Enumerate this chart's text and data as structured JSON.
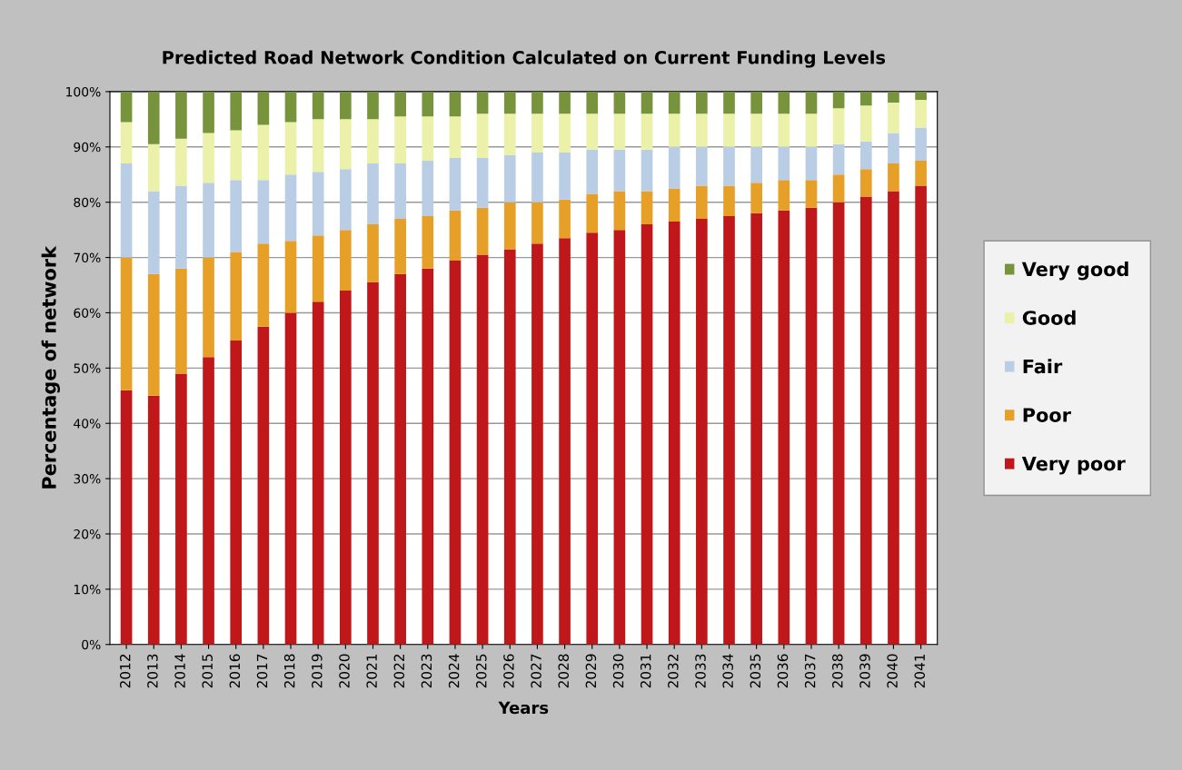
{
  "chart_data": {
    "type": "bar",
    "stacked": true,
    "title": "Predicted Road Network Condition Calculated on Current Funding Levels",
    "xlabel": "Years",
    "ylabel": "Percentage of network",
    "categories": [
      "2012",
      "2013",
      "2014",
      "2015",
      "2016",
      "2017",
      "2018",
      "2019",
      "2020",
      "2021",
      "2022",
      "2023",
      "2024",
      "2025",
      "2026",
      "2027",
      "2028",
      "2029",
      "2030",
      "2031",
      "2032",
      "2033",
      "2034",
      "2035",
      "2036",
      "2037",
      "2038",
      "2039",
      "2040",
      "2041"
    ],
    "series": [
      {
        "name": "Very poor",
        "color": "#c0181a",
        "values": [
          46,
          45,
          49,
          52,
          55,
          57.5,
          60,
          62,
          64,
          65.5,
          67,
          68,
          69.5,
          70.5,
          71.5,
          72.5,
          73.5,
          74.5,
          75,
          76,
          76.5,
          77,
          77.5,
          78,
          78.5,
          79,
          80,
          81,
          82,
          83
        ]
      },
      {
        "name": "Poor",
        "color": "#e6a028",
        "values": [
          24,
          22,
          19,
          18,
          16,
          15,
          13,
          12,
          11,
          10.5,
          10,
          9.5,
          9,
          8.5,
          8.5,
          7.5,
          7,
          7,
          7,
          6,
          6,
          6,
          5.5,
          5.5,
          5.5,
          5,
          5,
          5,
          5,
          4.5
        ]
      },
      {
        "name": "Fair",
        "color": "#b9cde5",
        "values": [
          17,
          15,
          15,
          13.5,
          13,
          11.5,
          12,
          11.5,
          11,
          11,
          10,
          10,
          9.5,
          9,
          8.5,
          9,
          8.5,
          8,
          7.5,
          7.5,
          7.5,
          7,
          7,
          6.5,
          6,
          6,
          5.5,
          5,
          5.5,
          6
        ]
      },
      {
        "name": "Good",
        "color": "#ebf1a8",
        "values": [
          7.5,
          8.5,
          8.5,
          9,
          9,
          10,
          9.5,
          9.5,
          9,
          8,
          8.5,
          8,
          7.5,
          8,
          7.5,
          7,
          7,
          6.5,
          6.5,
          6.5,
          6,
          6,
          6,
          6,
          6,
          6,
          6.5,
          6.5,
          5.5,
          5
        ]
      },
      {
        "name": "Very good",
        "color": "#77933c",
        "values": [
          5.5,
          9.5,
          8.5,
          7.5,
          7,
          6,
          5.5,
          5,
          5,
          5,
          4.5,
          4.5,
          4.5,
          4,
          4,
          4,
          4,
          4,
          4,
          4,
          4,
          4,
          4,
          4,
          4,
          4,
          3,
          2.5,
          2,
          1.5
        ]
      }
    ],
    "ylim": [
      0,
      100
    ],
    "yticks": [
      {
        "value": 0,
        "label": "0%"
      },
      {
        "value": 10,
        "label": "10%"
      },
      {
        "value": 20,
        "label": "20%"
      },
      {
        "value": 30,
        "label": "30%"
      },
      {
        "value": 40,
        "label": "40%"
      },
      {
        "value": 50,
        "label": "50%"
      },
      {
        "value": 60,
        "label": "60%"
      },
      {
        "value": 70,
        "label": "70%"
      },
      {
        "value": 80,
        "label": "80%"
      },
      {
        "value": 90,
        "label": "90%"
      },
      {
        "value": 100,
        "label": "100%"
      }
    ],
    "grid": "y",
    "legend": "right"
  }
}
